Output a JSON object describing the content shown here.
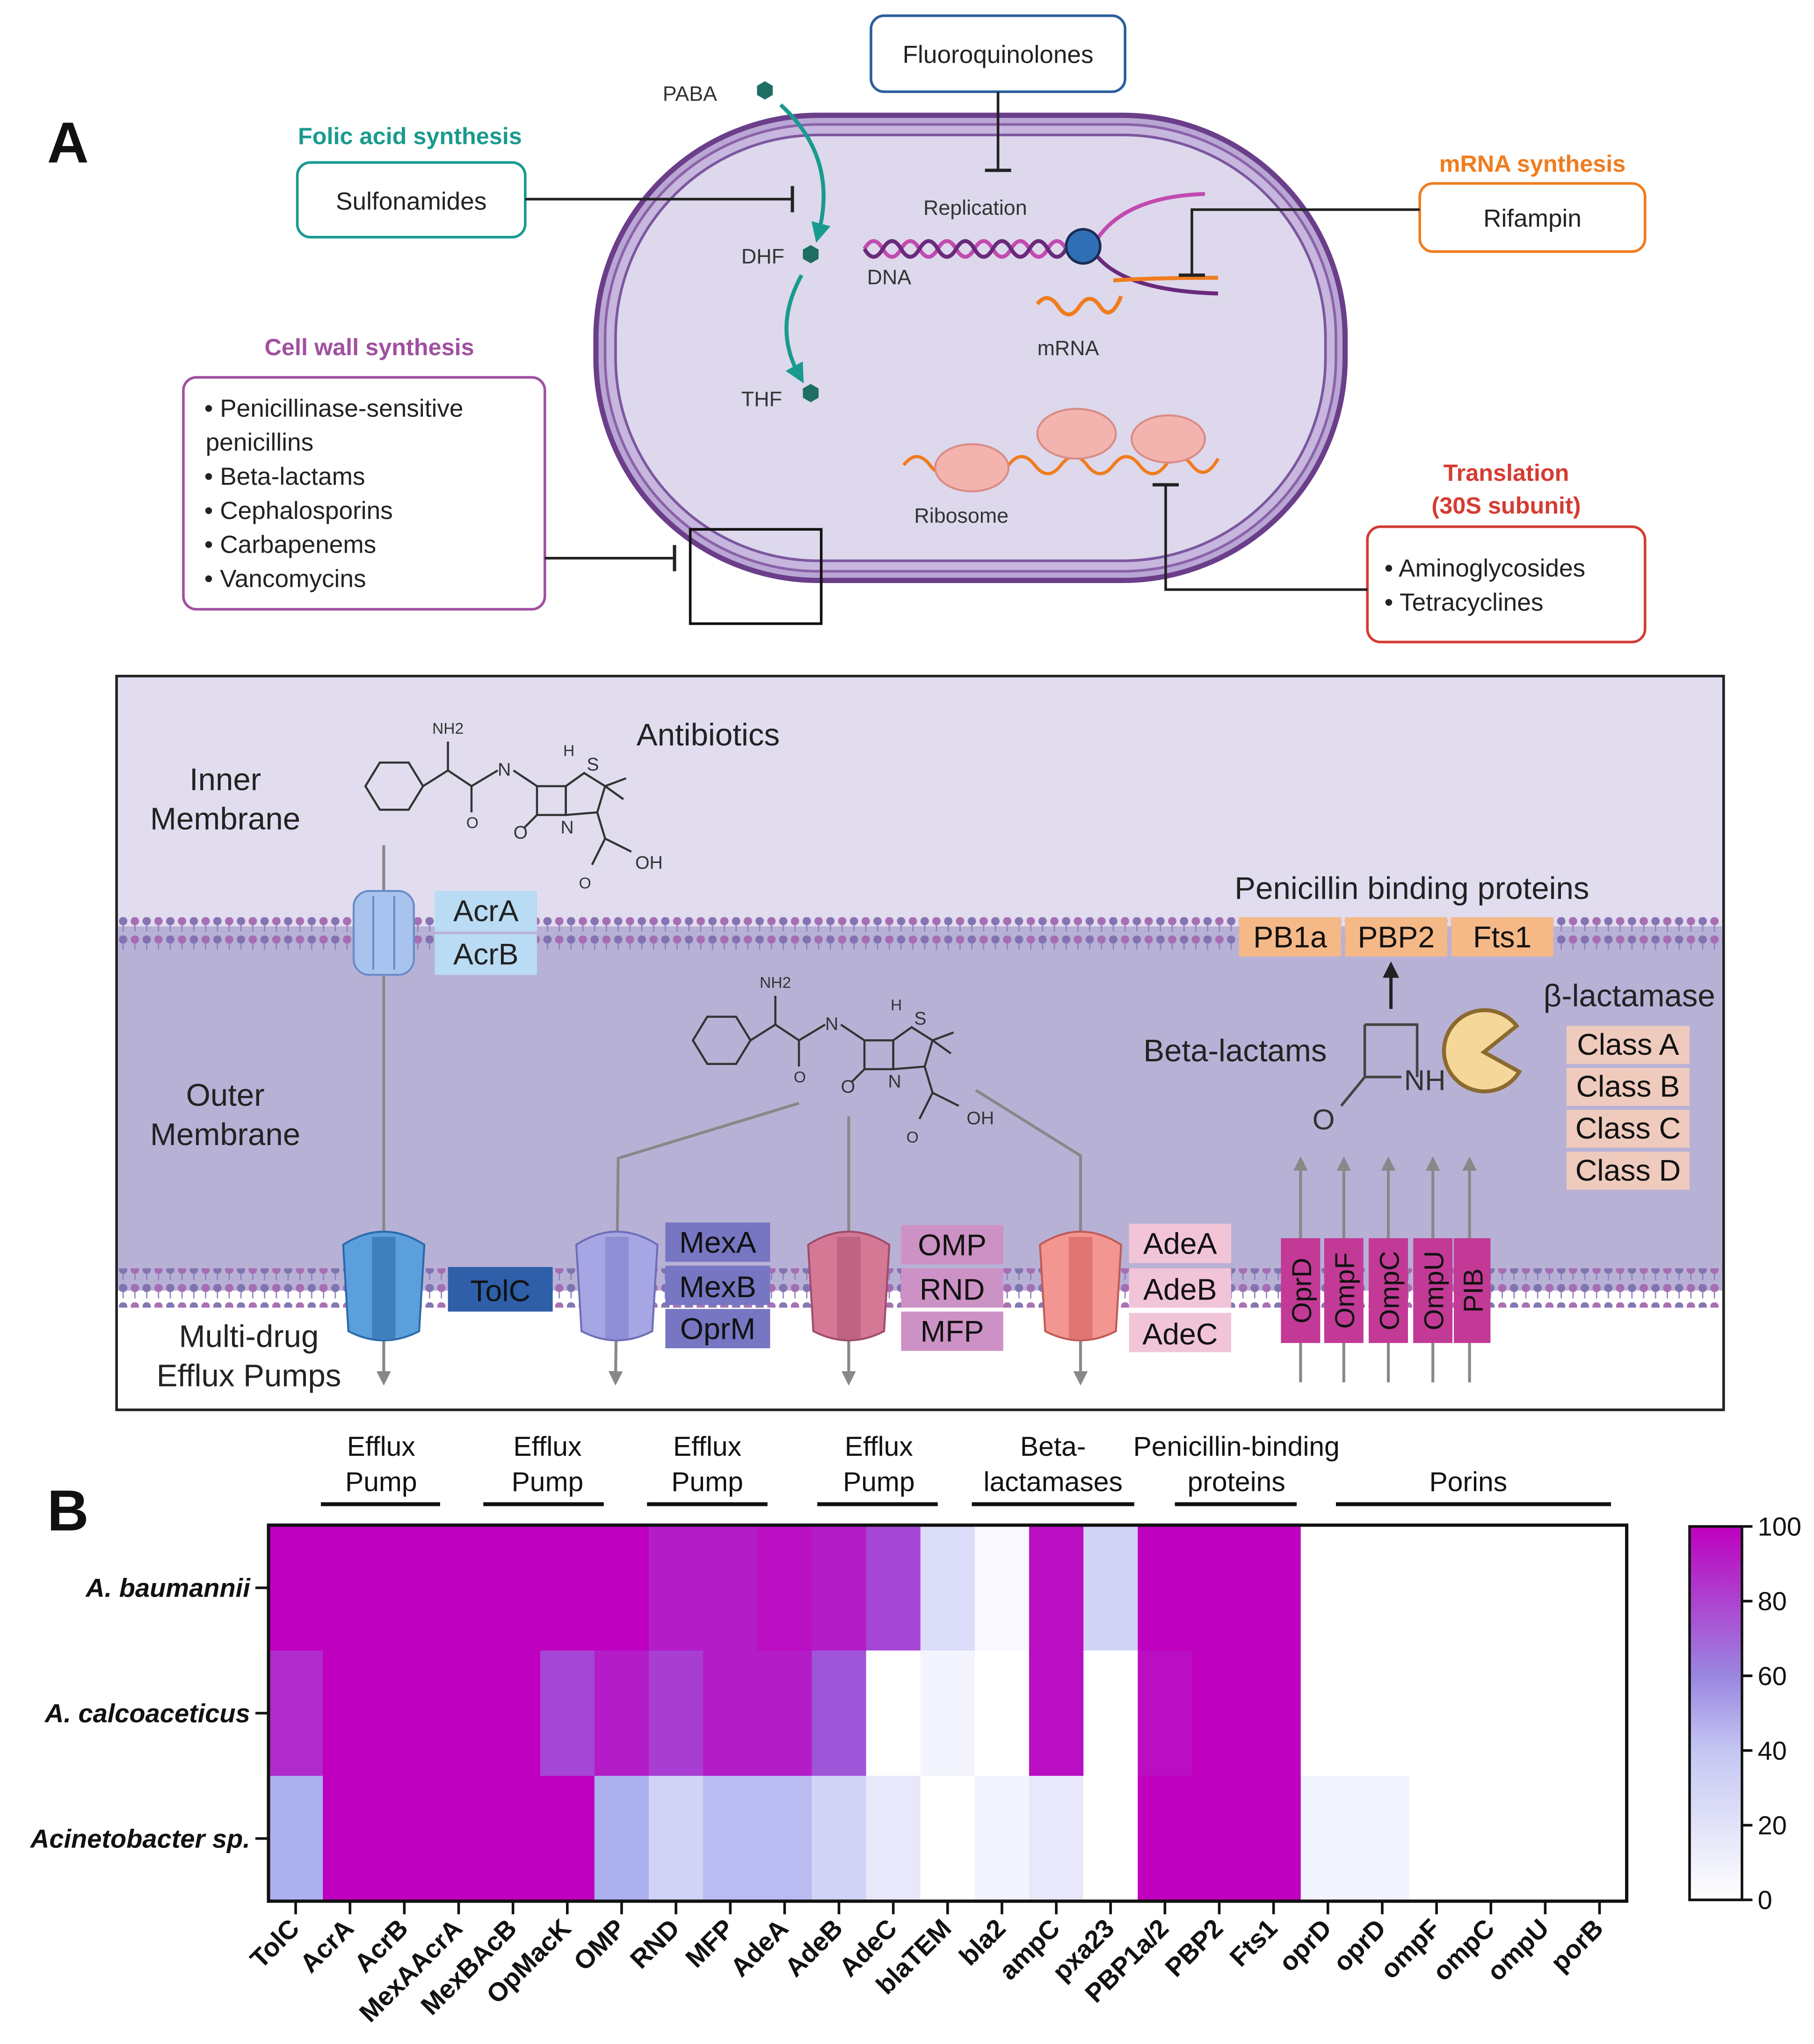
{
  "panel_a": {
    "label": "A",
    "cell": {
      "paba": "PABA",
      "dhf": "DHF",
      "thf": "THF",
      "replication": "Replication",
      "dna": "DNA",
      "mrna": "mRNA",
      "ribosome": "Ribosome"
    },
    "targets": {
      "folic": {
        "title": "Folic acid synthesis",
        "drug": "Sulfonamides",
        "color": "#1a9a8f"
      },
      "fluoro": {
        "drug": "Fluoroquinolones",
        "color": "#2b5e9e"
      },
      "mrna": {
        "title": "mRNA synthesis",
        "drug": "Rifampin",
        "color": "#f07c1e"
      },
      "cellwall": {
        "title": "Cell wall synthesis",
        "color": "#a050a0",
        "items": [
          "• Penicillinase-sensitive",
          "penicillins",
          "• Beta-lactams",
          "• Cephalosporins",
          "• Carbapenems",
          "• Vancomycins"
        ]
      },
      "translation": {
        "title1": "Translation",
        "title2": "(30S subunit)",
        "color": "#d43c32",
        "items": [
          "• Aminoglycosides",
          "• Tetracyclines"
        ]
      }
    },
    "membrane": {
      "inner_l1": "Inner",
      "inner_l2": "Membrane",
      "outer_l1": "Outer",
      "outer_l2": "Membrane",
      "efflux_l1": "Multi-drug",
      "efflux_l2": "Efflux Pumps",
      "antibiotics": "Antibiotics",
      "acrA": "AcrA",
      "acrB": "AcrB",
      "tolC": "TolC",
      "mex": [
        "MexA",
        "MexB",
        "OprM"
      ],
      "omp": [
        "OMP",
        "RND",
        "MFP"
      ],
      "ade": [
        "AdeA",
        "AdeB",
        "AdeC"
      ],
      "pbp_title": "Penicillin binding proteins",
      "pbps": [
        "PB1a",
        "PBP2",
        "Fts1"
      ],
      "beta_lactams": "Beta-lactams",
      "beta_lactamase": "β-lactamase",
      "classes": [
        "Class A",
        "Class B",
        "Class C",
        "Class D"
      ],
      "porins": [
        "OprD",
        "OmpF",
        "OmpC",
        "OmpU",
        "PIB"
      ],
      "nh": "NH",
      "o": "O",
      "mol": {
        "nh2": "NH2",
        "n": "N",
        "h": "H",
        "s": "S",
        "o": "O",
        "oh": "OH"
      }
    }
  },
  "panel_b": {
    "label": "B",
    "groups": [
      {
        "l1": "Efflux",
        "l2": "Pump"
      },
      {
        "l1": "Efflux",
        "l2": "Pump"
      },
      {
        "l1": "Efflux",
        "l2": "Pump"
      },
      {
        "l1": "Efflux",
        "l2": "Pump"
      },
      {
        "l1": "Beta-",
        "l2": "lactamases"
      },
      {
        "l1": "Penicillin-binding",
        "l2": "proteins"
      },
      {
        "l1": "",
        "l2": "Porins"
      }
    ],
    "colorbar": {
      "max": 100,
      "min": 0,
      "ticks": [
        "100",
        "80",
        "60",
        "40",
        "20",
        "0"
      ]
    }
  },
  "chart_data": {
    "type": "heatmap",
    "title": "",
    "xlabel": "",
    "ylabel": "",
    "rows": [
      "A. baumannii",
      "A. calcoaceticus",
      "Acinetobacter sp."
    ],
    "columns": [
      "TolC",
      "AcrA",
      "AcrB",
      "MexAAcrA",
      "MexBAcB",
      "OpMacK",
      "OMP",
      "RND",
      "MFP",
      "AdeA",
      "AdeB",
      "AdeC",
      "blaTEM",
      "bla2",
      "ampC",
      "pxa23",
      "PBP1a/2",
      "PBP2",
      "Fts1",
      "oprD",
      "oprD",
      "ompF",
      "ompC",
      "ompU",
      "porB"
    ],
    "values": [
      [
        100,
        100,
        100,
        100,
        100,
        100,
        100,
        90,
        90,
        95,
        90,
        75,
        15,
        3,
        95,
        20,
        100,
        100,
        100,
        0,
        0,
        0,
        0,
        0,
        0
      ],
      [
        85,
        100,
        100,
        100,
        100,
        75,
        90,
        78,
        90,
        90,
        70,
        0,
        5,
        0,
        95,
        0,
        95,
        100,
        100,
        0,
        0,
        0,
        0,
        0,
        0
      ],
      [
        35,
        100,
        100,
        100,
        100,
        100,
        35,
        20,
        30,
        30,
        20,
        10,
        0,
        5,
        10,
        0,
        100,
        100,
        100,
        5,
        5,
        0,
        0,
        0,
        0
      ]
    ],
    "value_range": [
      0,
      100
    ],
    "colormap": [
      "#ffffff",
      "#8a8ee8",
      "#bf00bf"
    ]
  }
}
